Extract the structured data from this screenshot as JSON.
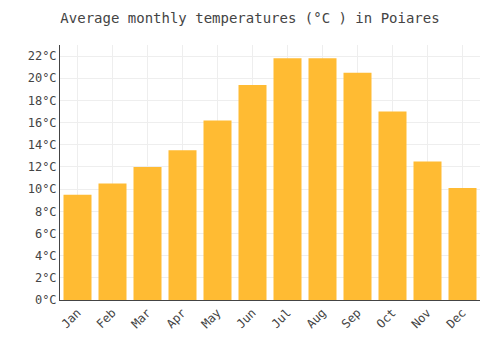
{
  "chart_data": {
    "type": "bar",
    "title": "Average monthly temperatures (°C ) in Poiares",
    "categories": [
      "Jan",
      "Feb",
      "Mar",
      "Apr",
      "May",
      "Jun",
      "Jul",
      "Aug",
      "Sep",
      "Oct",
      "Nov",
      "Dec"
    ],
    "values": [
      9.5,
      10.5,
      12.0,
      13.5,
      16.2,
      19.4,
      21.8,
      21.8,
      20.5,
      17.0,
      12.5,
      10.1
    ],
    "color": "#FFBB33",
    "ylim": [
      0,
      23
    ],
    "yticks": [
      {
        "value": 0,
        "label": "0°C"
      },
      {
        "value": 2,
        "label": "2°C"
      },
      {
        "value": 4,
        "label": "4°C"
      },
      {
        "value": 6,
        "label": "6°C"
      },
      {
        "value": 8,
        "label": "8°C"
      },
      {
        "value": 10,
        "label": "10°C"
      },
      {
        "value": 12,
        "label": "12°C"
      },
      {
        "value": 14,
        "label": "14°C"
      },
      {
        "value": 16,
        "label": "16°C"
      },
      {
        "value": 18,
        "label": "18°C"
      },
      {
        "value": 20,
        "label": "20°C"
      },
      {
        "value": 22,
        "label": "22°C"
      }
    ],
    "grid": true
  }
}
